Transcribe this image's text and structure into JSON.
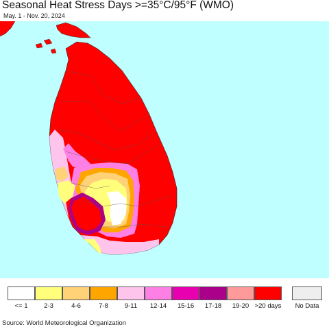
{
  "header": {
    "title": "Seasonal Heat Stress Days >=35°C/95°F (WMO)",
    "subtitle": "May. 1 - Nov. 20, 2024"
  },
  "colors": {
    "ocean": "#bfffff",
    "outside_land": "#ffffff",
    "gt20": "#ff0000",
    "c19_20": "#ff9a9a",
    "c17_18": "#aa008a",
    "c15_16": "#e800b0",
    "c12_14": "#ff80e4",
    "c9_11": "#ffc4ec",
    "c7_8": "#ffa500",
    "c4_6": "#ffd278",
    "c2_3": "#ffff7c",
    "le1": "#ffffff",
    "no_data": "#eeeeee"
  },
  "legend": {
    "items": [
      {
        "label": "<= 1",
        "color": "#ffffff"
      },
      {
        "label": "2-3",
        "color": "#ffff7c"
      },
      {
        "label": "4-6",
        "color": "#ffd278"
      },
      {
        "label": "7-8",
        "color": "#ffa500"
      },
      {
        "label": "9-11",
        "color": "#ffc4ec"
      },
      {
        "label": "12-14",
        "color": "#ff80e4"
      },
      {
        "label": "15-16",
        "color": "#e800b0"
      },
      {
        "label": "17-18",
        "color": "#aa008a"
      },
      {
        "label": "19-20",
        "color": "#ff9a9a"
      },
      {
        "label": ">20 days",
        "color": "#ff0000"
      }
    ],
    "no_data": {
      "label": "No Data",
      "color": "#eeeeee"
    }
  },
  "footer": {
    "source": "Source: World Meteorological Organization"
  }
}
